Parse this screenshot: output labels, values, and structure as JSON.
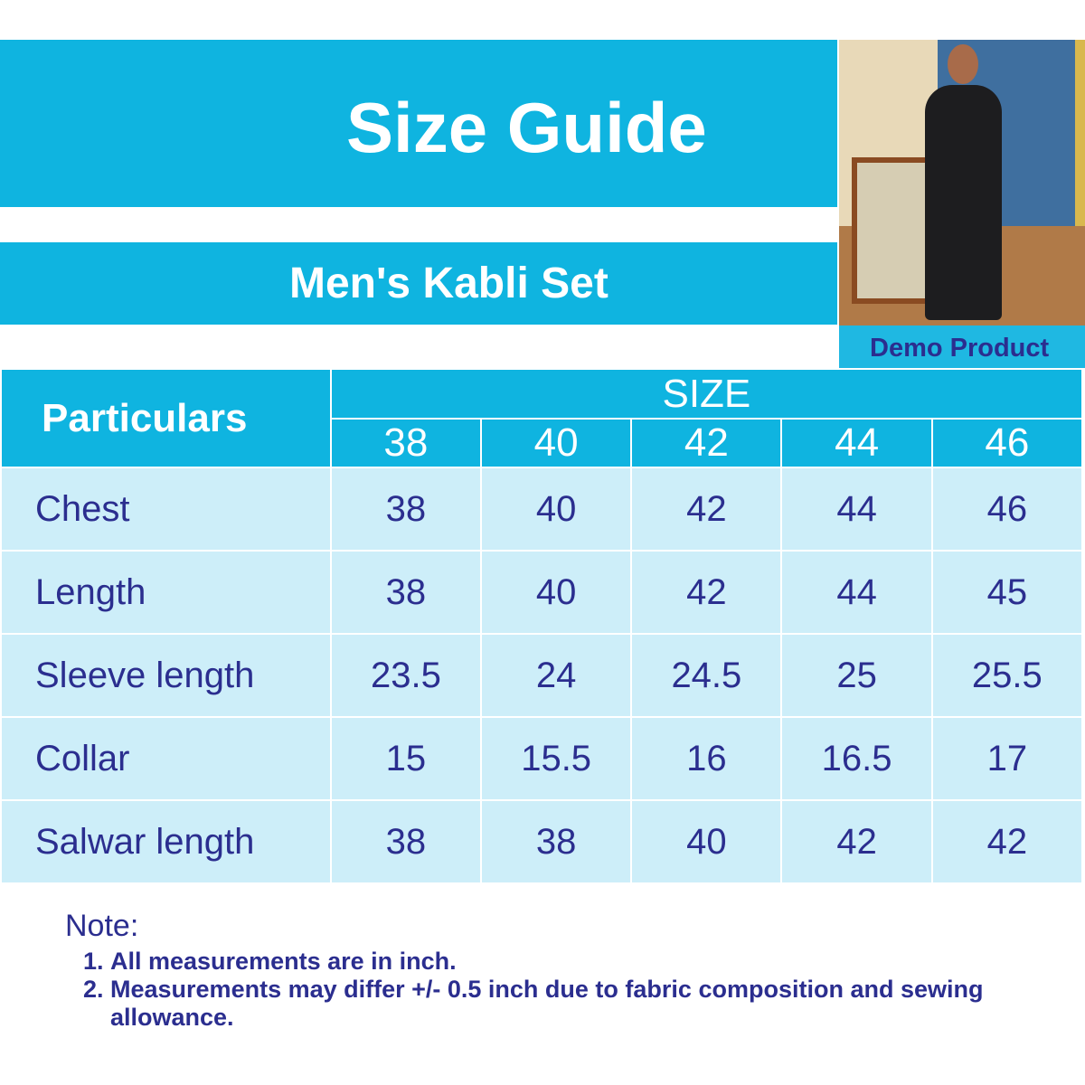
{
  "header": {
    "title": "Size Guide",
    "subtitle": "Men's Kabli Set",
    "badge": "Demo Product"
  },
  "table": {
    "particulars_label": "Particulars",
    "size_label": "SIZE",
    "sizes": [
      "38",
      "40",
      "42",
      "44",
      "46"
    ],
    "rows": [
      {
        "label": "Chest",
        "values": [
          "38",
          "40",
          "42",
          "44",
          "46"
        ]
      },
      {
        "label": "Length",
        "values": [
          "38",
          "40",
          "42",
          "44",
          "45"
        ]
      },
      {
        "label": "Sleeve length",
        "values": [
          "23.5",
          "24",
          "24.5",
          "25",
          "25.5"
        ]
      },
      {
        "label": "Collar",
        "values": [
          "15",
          "15.5",
          "16",
          "16.5",
          "17"
        ]
      },
      {
        "label": "Salwar length",
        "values": [
          "38",
          "38",
          "40",
          "42",
          "42"
        ]
      }
    ]
  },
  "notes": {
    "heading": "Note:",
    "items": [
      "All measurements are in inch.",
      "Measurements may differ +/- 0.5 inch due to fabric composition and sewing allowance."
    ]
  },
  "colors": {
    "accent": "#0fb4e0",
    "row_bg": "#cdeef9",
    "text": "#2b2e8f"
  }
}
